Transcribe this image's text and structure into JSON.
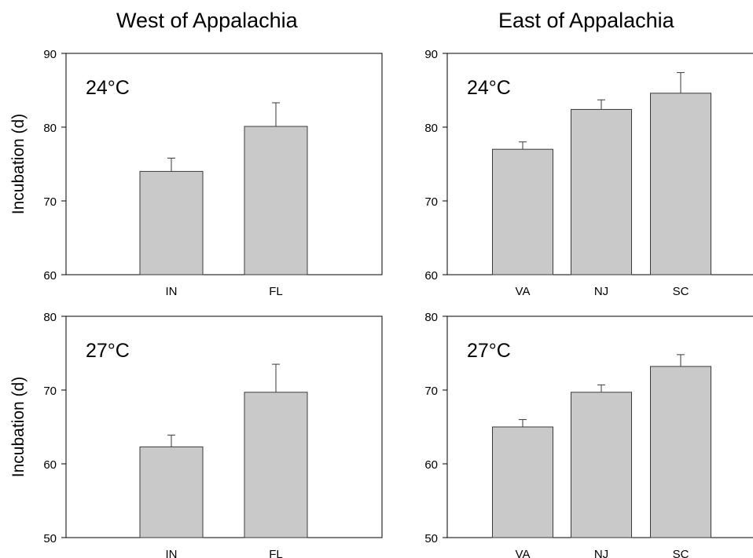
{
  "titles": {
    "west": "West of Appalachia",
    "east": "East of Appalachia"
  },
  "colors": {
    "bar_fill": "#c9c9c9",
    "bar_stroke": "#3a3a3a",
    "axis": "#000000"
  },
  "chart_data": [
    {
      "type": "bar",
      "panel": "west-24",
      "annotation": "24°C",
      "ylabel": "Incubation (d)",
      "ylim": [
        60,
        90
      ],
      "yticks": [
        60,
        70,
        80,
        90
      ],
      "categories": [
        "IN",
        "FL"
      ],
      "values": [
        74.0,
        80.1
      ],
      "errors": [
        1.8,
        3.2
      ],
      "grid": false
    },
    {
      "type": "bar",
      "panel": "east-24",
      "annotation": "24°C",
      "ylabel": "",
      "ylim": [
        60,
        90
      ],
      "yticks": [
        60,
        70,
        80,
        90
      ],
      "categories": [
        "VA",
        "NJ",
        "SC"
      ],
      "values": [
        77.0,
        82.4,
        84.6
      ],
      "errors": [
        1.0,
        1.3,
        2.8
      ],
      "grid": false
    },
    {
      "type": "bar",
      "panel": "west-27",
      "annotation": "27°C",
      "ylabel": "Incubation (d)",
      "ylim": [
        50,
        80
      ],
      "yticks": [
        50,
        60,
        70,
        80
      ],
      "categories": [
        "IN",
        "FL"
      ],
      "values": [
        62.3,
        69.7
      ],
      "errors": [
        1.6,
        3.8
      ],
      "grid": false
    },
    {
      "type": "bar",
      "panel": "east-27",
      "annotation": "27°C",
      "ylabel": "",
      "ylim": [
        50,
        80
      ],
      "yticks": [
        50,
        60,
        70,
        80
      ],
      "categories": [
        "VA",
        "NJ",
        "SC"
      ],
      "values": [
        65.0,
        69.7,
        73.2
      ],
      "errors": [
        1.0,
        1.0,
        1.6
      ],
      "grid": false
    }
  ]
}
